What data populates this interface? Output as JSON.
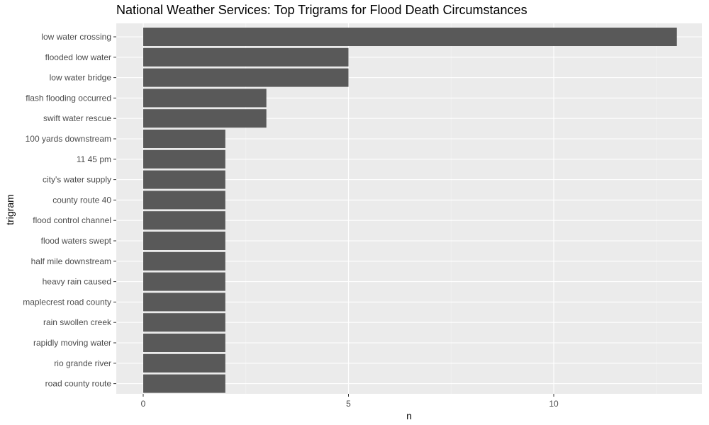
{
  "chart_data": {
    "type": "bar",
    "orientation": "horizontal",
    "title": "National Weather Services: Top Trigrams for Flood Death Circumstances",
    "xlabel": "n",
    "ylabel": "trigram",
    "xlim": [
      0,
      13
    ],
    "xticks": [
      0,
      5,
      10
    ],
    "grid": true,
    "bar_color": "#595959",
    "panel_color": "#ebebeb",
    "categories": [
      "low water crossing",
      "flooded low water",
      "low water bridge",
      "flash flooding occurred",
      "swift water rescue",
      "100 yards downstream",
      "11 45 pm",
      "city's water supply",
      "county route 40",
      "flood control channel",
      "flood waters swept",
      "half mile downstream",
      "heavy rain caused",
      "maplecrest road county",
      "rain swollen creek",
      "rapidly moving water",
      "rio grande river",
      "road county route"
    ],
    "values": [
      13,
      5,
      5,
      3,
      3,
      2,
      2,
      2,
      2,
      2,
      2,
      2,
      2,
      2,
      2,
      2,
      2,
      2
    ]
  }
}
